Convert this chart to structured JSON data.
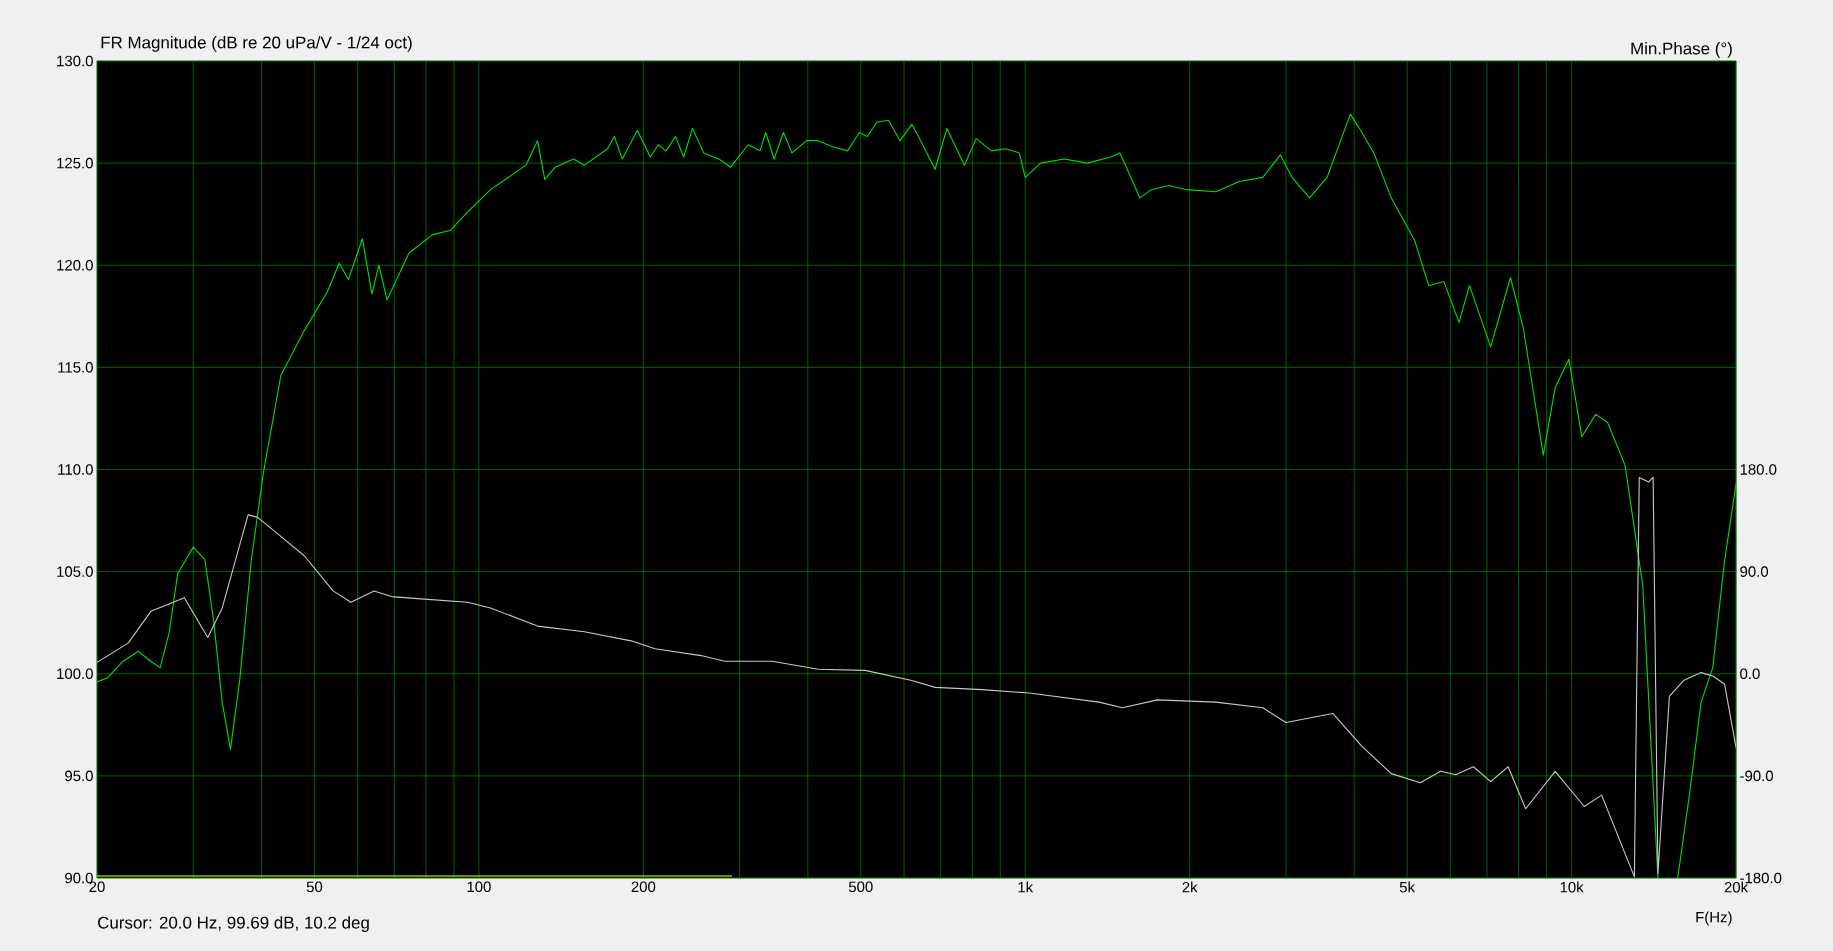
{
  "chart_data": {
    "type": "line",
    "title": "FR Magnitude (dB re 20 uPa/V - 1/24 oct)",
    "xlabel": "F(Hz)",
    "y2label": "Min.Phase (°)",
    "annotations": [
      "Cursor: 20.0 Hz, 99.69 dB, 10.2 deg"
    ],
    "log": "x",
    "grid": true,
    "marker": "none",
    "xlim": [
      20,
      20000
    ],
    "xticks": [
      20,
      {
        "value": 30,
        "label": null
      },
      {
        "value": 40,
        "label": null
      },
      50,
      {
        "value": 60,
        "label": null
      },
      {
        "value": 70,
        "label": null
      },
      {
        "value": 80,
        "label": null
      },
      {
        "value": 90,
        "label": null
      },
      100,
      200,
      {
        "value": 300,
        "label": null
      },
      {
        "value": 400,
        "label": null
      },
      500,
      {
        "value": 600,
        "label": null
      },
      {
        "value": 700,
        "label": null
      },
      {
        "value": 800,
        "label": null
      },
      {
        "value": 900,
        "label": null
      },
      {
        "value": 1000,
        "label": "1k"
      },
      {
        "value": 2000,
        "label": "2k"
      },
      {
        "value": 3000,
        "label": null
      },
      {
        "value": 4000,
        "label": null
      },
      {
        "value": 5000,
        "label": "5k"
      },
      {
        "value": 6000,
        "label": null
      },
      {
        "value": 7000,
        "label": null
      },
      {
        "value": 8000,
        "label": null
      },
      {
        "value": 9000,
        "label": null
      },
      {
        "value": 10000,
        "label": "10k"
      },
      {
        "value": 20000,
        "label": "20k"
      }
    ],
    "ylim": [
      90,
      130
    ],
    "yticks": [
      {
        "value": 90,
        "label": "90.0"
      },
      {
        "value": 95,
        "label": "95.0"
      },
      {
        "value": 100,
        "label": "100.0"
      },
      {
        "value": 105,
        "label": "105.0"
      },
      {
        "value": 110,
        "label": "110.0"
      },
      {
        "value": 115,
        "label": "115.0"
      },
      {
        "value": 120,
        "label": "120.0"
      },
      {
        "value": 125,
        "label": "125.0"
      },
      {
        "value": 130,
        "label": "130.0"
      }
    ],
    "y2lim": [
      -180,
      540
    ],
    "y2ticks": [
      {
        "value": -180,
        "label": "-180.0"
      },
      {
        "value": -90,
        "label": "-90.0"
      },
      {
        "value": 0,
        "label": "0.0"
      },
      {
        "value": 90,
        "label": "90.0"
      },
      {
        "value": 180,
        "label": "180.0"
      }
    ],
    "series": [
      {
        "color": "#ffff00",
        "x": [
          20,
          290
        ],
        "values": [
          90.1,
          90.1
        ]
      },
      {
        "color": "#c8c8c8",
        "axis": "y2",
        "x": [
          20,
          22.8,
          25.1,
          28.9,
          31.9,
          33.9,
          37.8,
          39.3,
          43.4,
          47.9,
          54.1,
          58.3,
          64.3,
          69.2,
          78.3,
          95.3,
          105,
          128,
          156,
          190,
          210,
          255,
          282,
          344,
          418,
          509,
          620,
          684,
          834,
          1016,
          1365,
          1506,
          1746,
          2233,
          2722,
          3000,
          3656,
          4133,
          4677,
          5285,
          5756,
          6137,
          6612,
          7112,
          7655,
          8241,
          9330,
          10550,
          11350,
          13030,
          13300,
          13840,
          14100,
          14390,
          15100,
          16030,
          17260,
          18130,
          19050,
          20000
        ],
        "values": [
          10,
          27,
          55,
          67,
          32,
          58,
          140,
          138,
          121,
          104,
          73,
          63,
          73,
          68,
          66,
          63,
          58,
          42,
          37,
          29,
          22,
          16,
          11,
          11,
          4,
          3,
          -6,
          -12,
          -14,
          -17,
          -25,
          -30,
          -23,
          -25,
          -30,
          -43,
          -35,
          -64,
          -88,
          -96,
          -86,
          -89,
          -82,
          -95,
          -82,
          -119,
          -86,
          -117,
          -107,
          -179,
          173,
          169,
          173,
          -176,
          -20,
          -6,
          1,
          -2,
          -9,
          -65
        ]
      },
      {
        "color": "#00e000",
        "x": [
          20,
          20.9,
          22.3,
          23.8,
          25.1,
          26.1,
          27.1,
          28.1,
          30,
          31.5,
          32.7,
          33.9,
          35.1,
          36.5,
          38.3,
          40.3,
          43.4,
          47.9,
          52.8,
          55.5,
          57.7,
          61.2,
          63.7,
          65.6,
          67.9,
          74.5,
          82.3,
          88.6,
          95.3,
          105,
          122,
          128,
          132,
          138,
          149,
          156,
          172,
          177,
          183,
          195,
          206,
          213,
          220,
          229,
          237,
          246,
          258,
          275,
          289,
          311,
          327,
          335,
          347,
          361,
          374,
          398,
          418,
          444,
          473,
          497,
          514,
          535,
          562,
          590,
          620,
          638,
          684,
          719,
          774,
          813,
          867,
          920,
          975,
          1000,
          1067,
          1178,
          1300,
          1433,
          1490,
          1543,
          1621,
          1702,
          1833,
          1975,
          2233,
          2465,
          2722,
          2931,
          3079,
          3314,
          3569,
          3937,
          4133,
          4345,
          4677,
          5164,
          5477,
          5838,
          6223,
          6504,
          7112,
          7731,
          8163,
          8875,
          9330,
          9886,
          10440,
          11070,
          11640,
          12530,
          13500,
          14390,
          15040,
          15640,
          16440,
          17260,
          18130,
          19050,
          20000
        ],
        "values": [
          99.6,
          99.8,
          100.6,
          101.1,
          100.6,
          100.3,
          102,
          104.9,
          106.2,
          105.6,
          102.6,
          98.6,
          96.3,
          99.7,
          105.5,
          109.8,
          114.6,
          116.8,
          118.7,
          120.1,
          119.3,
          121.3,
          118.6,
          120,
          118.3,
          120.6,
          121.5,
          121.7,
          122.6,
          123.7,
          124.9,
          126.1,
          124.2,
          124.8,
          125.2,
          124.9,
          125.7,
          126.3,
          125.2,
          126.6,
          125.3,
          125.9,
          125.6,
          126.3,
          125.3,
          126.7,
          125.5,
          125.2,
          124.8,
          125.9,
          125.6,
          126.5,
          125.2,
          126.5,
          125.5,
          126.1,
          126.1,
          125.8,
          125.6,
          126.5,
          126.3,
          127,
          127.1,
          126.1,
          126.9,
          126.3,
          124.7,
          126.7,
          124.9,
          126.2,
          125.6,
          125.7,
          125.5,
          124.3,
          125,
          125.2,
          125,
          125.3,
          125.5,
          124.6,
          123.3,
          123.7,
          123.9,
          123.7,
          123.6,
          124.1,
          124.3,
          125.4,
          124.3,
          123.3,
          124.3,
          127.4,
          126.5,
          125.5,
          123.3,
          121.2,
          119,
          119.2,
          117.2,
          119,
          116,
          119.4,
          116.9,
          110.7,
          114,
          115.4,
          111.6,
          112.7,
          112.3,
          110.2,
          104.3,
          90,
          null,
          90,
          94.1,
          98.6,
          100.3,
          105.5,
          109.3
        ]
      }
    ]
  }
}
